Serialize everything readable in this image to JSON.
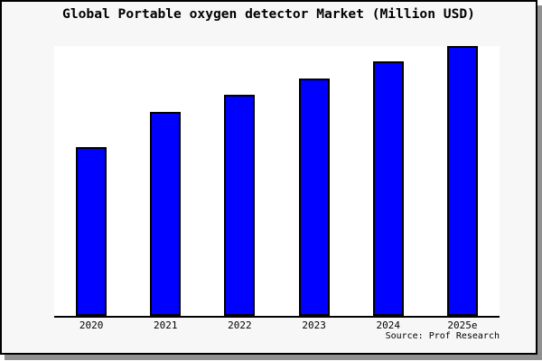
{
  "chart_data": {
    "type": "bar",
    "title": "Global Portable oxygen detector Market (Million USD)",
    "categories": [
      "2020",
      "2021",
      "2022",
      "2023",
      "2024",
      "2025e"
    ],
    "values": [
      62.5,
      75.6,
      81.9,
      88.0,
      94.3,
      100
    ],
    "values_note": "no y-axis shown; values are relative units estimated from bar heights with 2025e = 100",
    "xlabel": "",
    "ylabel": "",
    "ylim": [
      0,
      100
    ],
    "grid": false,
    "legend": false,
    "y_axis_visible": false,
    "source": "Source: Prof Research",
    "colors": {
      "bar_fill": "#0000ff",
      "bar_border": "#000000",
      "axis_line": "#000000",
      "plot_background": "#ffffff",
      "card_background": "#f7f7f7",
      "card_border": "#000000",
      "card_shadow": "#909090",
      "text": "#000000"
    }
  }
}
